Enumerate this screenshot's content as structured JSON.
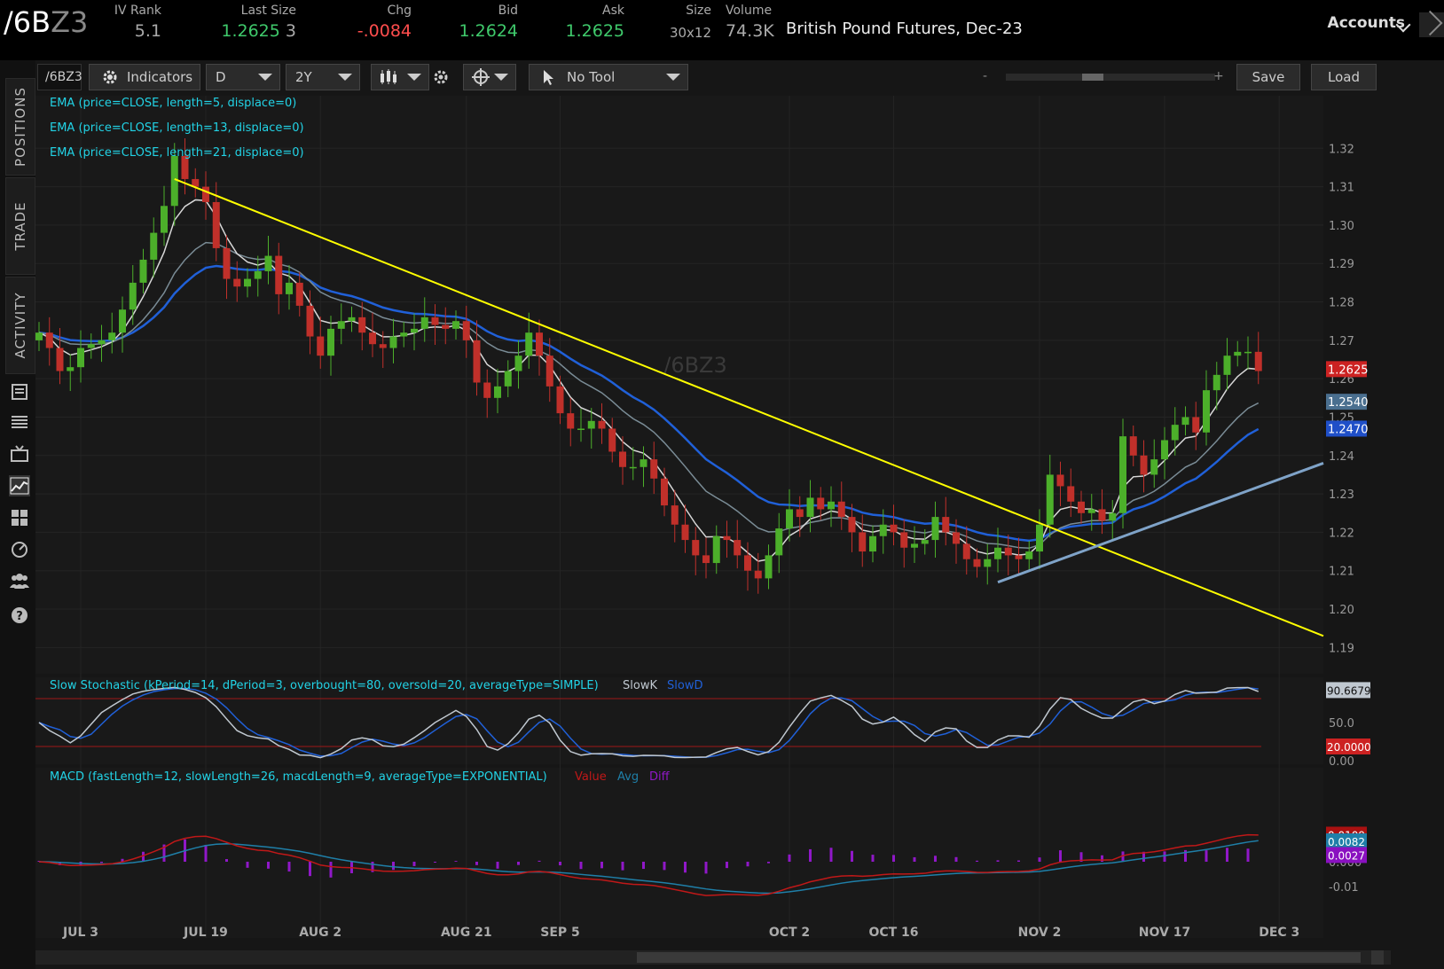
{
  "header": {
    "symbol_main": "/6B",
    "symbol_dim": "Z3",
    "quotes": [
      {
        "label": "IV Rank",
        "value": "5.1",
        "color": "grey"
      },
      {
        "label": "Last Size",
        "value": "1.2625",
        "value2": "3",
        "color": "green"
      },
      {
        "label": "Chg",
        "value": "-.0084",
        "color": "red"
      },
      {
        "label": "Bid",
        "value": "1.2624",
        "color": "green"
      },
      {
        "label": "Ask",
        "value": "1.2625",
        "color": "green"
      },
      {
        "label": "Size",
        "value": "30x12",
        "color": "grey"
      },
      {
        "label": "Volume",
        "value": "74.3K",
        "color": "grey"
      }
    ],
    "description": "British Pound Futures, Dec-23",
    "accounts_label": "Accounts"
  },
  "left_tabs": [
    "POSITIONS",
    "TRADE",
    "ACTIVITY"
  ],
  "left_icons": [
    "news-icon",
    "list-icon",
    "tv-icon",
    "chart-icon",
    "grid-icon",
    "gauge-icon",
    "people-icon",
    "help-icon"
  ],
  "toolbar": {
    "symbol": "/6BZ3",
    "indicators_label": "Indicators",
    "aggregation": "D",
    "timeframe": "2Y",
    "drawing_tool": "No Tool",
    "save_label": "Save",
    "load_label": "Load",
    "zoom_minus": "-",
    "zoom_plus": "+"
  },
  "chart_data": {
    "type": "candlestick",
    "watermark": "/6BZ3",
    "studies": [
      "EMA (price=CLOSE, length=5, displace=0)",
      "EMA (price=CLOSE, length=13, displace=0)",
      "EMA (price=CLOSE, length=21, displace=0)"
    ],
    "price_axis": {
      "ylim": [
        1.185,
        1.33
      ],
      "ticks": [
        "1.32",
        "1.31",
        "1.30",
        "1.29",
        "1.28",
        "1.27",
        "1.26",
        "1.25",
        "1.24",
        "1.23",
        "1.22",
        "1.21",
        "1.20",
        "1.19"
      ]
    },
    "price_badges": [
      {
        "value": "1.2625",
        "color": "#cc2222"
      },
      {
        "value": "1.2540",
        "color": "#4a6f8f"
      },
      {
        "value": "1.2470",
        "color": "#1f4fc8"
      }
    ],
    "date_labels": [
      "JUL 3",
      "JUL 19",
      "AUG 2",
      "AUG 21",
      "SEP 5",
      "OCT 2",
      "OCT 16",
      "NOV 2",
      "NOV 17",
      "DEC 3"
    ],
    "closes": [
      1.272,
      1.268,
      1.262,
      1.263,
      1.268,
      1.269,
      1.27,
      1.272,
      1.278,
      1.285,
      1.291,
      1.298,
      1.305,
      1.318,
      1.312,
      1.31,
      1.306,
      1.294,
      1.286,
      1.284,
      1.286,
      1.288,
      1.292,
      1.282,
      1.285,
      1.279,
      1.271,
      1.266,
      1.273,
      1.275,
      1.276,
      1.272,
      1.269,
      1.268,
      1.271,
      1.272,
      1.273,
      1.276,
      1.274,
      1.273,
      1.275,
      1.27,
      1.259,
      1.255,
      1.258,
      1.262,
      1.266,
      1.272,
      1.266,
      1.258,
      1.251,
      1.247,
      1.247,
      1.249,
      1.247,
      1.241,
      1.237,
      1.237,
      1.239,
      1.234,
      1.227,
      1.222,
      1.218,
      1.214,
      1.212,
      1.219,
      1.218,
      1.214,
      1.21,
      1.208,
      1.214,
      1.221,
      1.226,
      1.224,
      1.229,
      1.226,
      1.228,
      1.224,
      1.22,
      1.215,
      1.219,
      1.222,
      1.22,
      1.216,
      1.217,
      1.218,
      1.224,
      1.22,
      1.217,
      1.213,
      1.211,
      1.213,
      1.216,
      1.214,
      1.213,
      1.215,
      1.222,
      1.235,
      1.232,
      1.228,
      1.225,
      1.226,
      1.223,
      1.225,
      1.245,
      1.24,
      1.235,
      1.239,
      1.244,
      1.248,
      1.25,
      1.246,
      1.257,
      1.261,
      1.266,
      1.267,
      1.267,
      1.262
    ],
    "trendlines": [
      {
        "name": "downtrend",
        "color": "#ffff00",
        "from": {
          "date": "JUL 13",
          "price": 1.312
        },
        "to": {
          "date": "DEC 6",
          "price": 1.193
        }
      },
      {
        "name": "uptrend",
        "color": "#7fa3c8",
        "from": {
          "date": "OCT 26",
          "price": 1.207
        },
        "to": {
          "date": "DEC 6",
          "price": 1.238
        }
      }
    ],
    "stochastic": {
      "title": "Slow Stochastic (kPeriod=14, dPeriod=3, overbought=80, oversold=20, averageType=SIMPLE)",
      "legend": [
        "SlowK",
        "SlowD"
      ],
      "ticks": [
        "50.0",
        "0.00"
      ],
      "badges": [
        "90.6679",
        "20.0000"
      ],
      "overbought": 80,
      "oversold": 20
    },
    "macd": {
      "title": "MACD (fastLength=12, slowLength=26, macdLength=9, averageType=EXPONENTIAL)",
      "legend": [
        "Value",
        "Avg",
        "Diff"
      ],
      "ticks": [
        "0.000",
        "-0.01"
      ],
      "badges": [
        "0.0109",
        "0.0082",
        "0.0027"
      ]
    }
  },
  "colors": {
    "up": "#4caf2a",
    "down": "#c0302a",
    "ema5": "#d8d8d8",
    "ema13": "#7a8c96",
    "ema21": "#2060d8",
    "study_text": "#22d3e6",
    "stoch_k": "#c0c8d0",
    "stoch_d": "#2060d8",
    "macd_value": "#c01818",
    "macd_avg": "#1f7fa8",
    "macd_diff": "#9018c8"
  }
}
